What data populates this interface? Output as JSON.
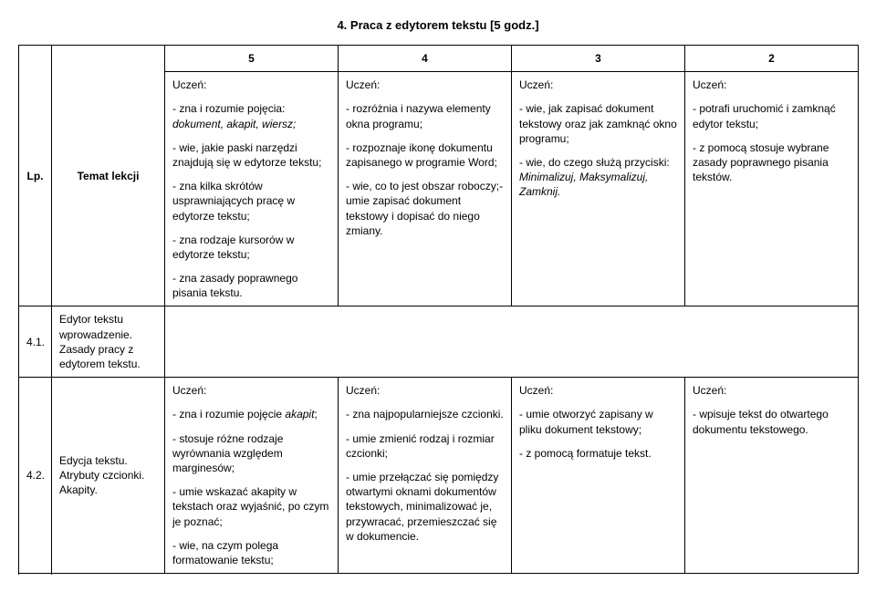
{
  "section_title": "4.  Praca z edytorem tekstu [5 godz.]",
  "header": {
    "lp": "Lp.",
    "topic": "Temat lekcji",
    "l5": "5",
    "l4": "4",
    "l3": "3",
    "l2": "2"
  },
  "row41": {
    "lp": "4.1.",
    "topic": "Edytor tekstu wprowadzenie. Zasady pracy z edytorem tekstu.",
    "c5": {
      "u": "Uczeń:",
      "p1a": "- zna i rozumie pojęcia: ",
      "p1b": "dokument, akapit, wiersz;",
      "p2": "- wie, jakie paski narzędzi znajdują się w edytorze tekstu;",
      "p3": "- zna kilka skrótów usprawniających pracę w edytorze tekstu;",
      "p4": "- zna rodzaje kursorów w edytorze tekstu;",
      "p5": "- zna zasady poprawnego pisania tekstu."
    },
    "c4": {
      "u": "Uczeń:",
      "p1": "- rozróżnia i nazywa elementy okna programu;",
      "p2": "- rozpoznaje ikonę dokumentu zapisanego w programie Word;",
      "p3": "- wie, co to jest obszar roboczy;- umie zapisać dokument tekstowy i dopisać do niego zmiany."
    },
    "c3": {
      "u": "Uczeń:",
      "p1": "- wie, jak zapisać dokument tekstowy oraz jak zamknąć okno programu;",
      "p2a": "- wie, do czego służą przyciski: ",
      "p2b": "Minimalizuj, Maksymalizuj, Zamknij."
    },
    "c2": {
      "u": "Uczeń:",
      "p1": "- potrafi uruchomić i zamknąć edytor tekstu;",
      "p2": "- z pomocą stosuje wybrane zasady poprawnego pisania tekstów."
    }
  },
  "row42": {
    "lp": "4.2.",
    "topic": "Edycja tekstu. Atrybuty czcionki. Akapity.",
    "c5": {
      "u": "Uczeń:",
      "p1a": "- zna i rozumie pojęcie ",
      "p1b": "akapit",
      "p1c": ";",
      "p2": "- stosuje różne rodzaje wyrównania względem marginesów;",
      "p3": "- umie wskazać akapity w tekstach oraz wyjaśnić, po czym je poznać;",
      "p4": "- wie, na czym polega formatowanie tekstu;"
    },
    "c4": {
      "u": "Uczeń:",
      "p1": "- zna najpopularniejsze czcionki.",
      "p2": "- umie zmienić rodzaj i rozmiar czcionki;",
      "p3": "- umie przełączać się pomiędzy otwartymi oknami dokumentów tekstowych, minimalizować  je, przywracać, przemieszczać się w dokumencie."
    },
    "c3": {
      "u": "Uczeń:",
      "p1": "- umie otworzyć zapisany w pliku dokument tekstowy;",
      "p2": "- z pomocą formatuje tekst."
    },
    "c2": {
      "u": "Uczeń:",
      "p1": "- wpisuje tekst do otwartego dokumentu tekstowego."
    }
  }
}
